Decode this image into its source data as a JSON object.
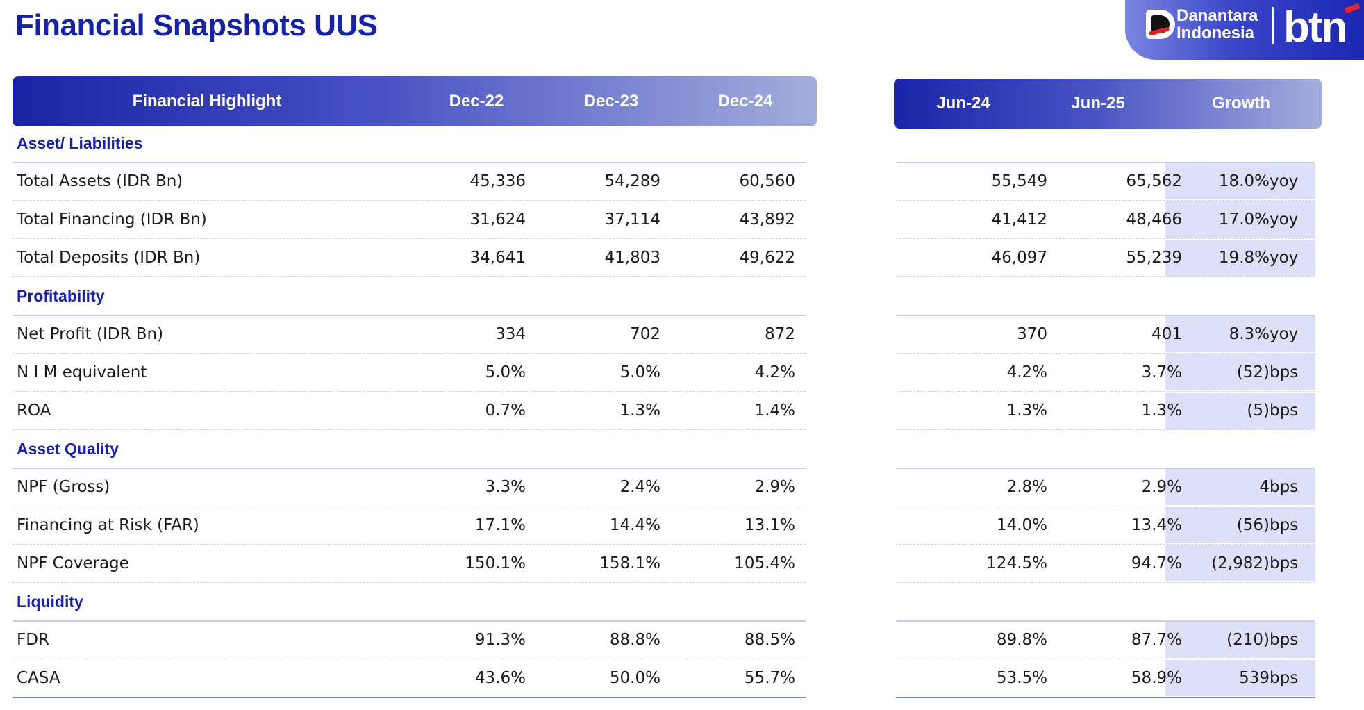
{
  "title": "Financial Snapshots UUS",
  "logo": {
    "line1": "Danantara",
    "line2": "Indonesia",
    "brand": "btn"
  },
  "left_header": {
    "label": "Financial Highlight",
    "cols": [
      "Dec-22",
      "Dec-23",
      "Dec-24"
    ]
  },
  "right_header": {
    "cols": [
      "Jun-24",
      "Jun-25",
      "Growth"
    ]
  },
  "rows": [
    {
      "type": "section",
      "label": "Asset/ Liabilities"
    },
    {
      "type": "data",
      "label": "Total Assets (IDR Bn)",
      "d22": "45,336",
      "d23": "54,289",
      "d24": "60,560",
      "j24": "55,549",
      "j25": "65,562",
      "growth": "18.0%",
      "unit": "yoy"
    },
    {
      "type": "data",
      "label": "Total Financing (IDR Bn)",
      "d22": "31,624",
      "d23": "37,114",
      "d24": "43,892",
      "j24": "41,412",
      "j25": "48,466",
      "growth": "17.0%",
      "unit": "yoy"
    },
    {
      "type": "data",
      "label": "Total Deposits (IDR Bn)",
      "d22": "34,641",
      "d23": "41,803",
      "d24": "49,622",
      "j24": "46,097",
      "j25": "55,239",
      "growth": "19.8%",
      "unit": "yoy"
    },
    {
      "type": "section",
      "label": "Profitability"
    },
    {
      "type": "data",
      "label": "Net Profit (IDR Bn)",
      "d22": "334",
      "d23": "702",
      "d24": "872",
      "j24": "370",
      "j25": "401",
      "growth": "8.3%",
      "unit": "yoy"
    },
    {
      "type": "data",
      "label": "N I M equivalent",
      "d22": "5.0%",
      "d23": "5.0%",
      "d24": "4.2%",
      "j24": "4.2%",
      "j25": "3.7%",
      "growth": "(52)",
      "unit": "bps"
    },
    {
      "type": "data",
      "label": "ROA",
      "d22": "0.7%",
      "d23": "1.3%",
      "d24": "1.4%",
      "j24": "1.3%",
      "j25": "1.3%",
      "growth": "(5)",
      "unit": "bps"
    },
    {
      "type": "section",
      "label": "Asset Quality"
    },
    {
      "type": "data",
      "label": "NPF (Gross)",
      "d22": "3.3%",
      "d23": "2.4%",
      "d24": "2.9%",
      "j24": "2.8%",
      "j25": "2.9%",
      "growth": "4",
      "unit": "bps"
    },
    {
      "type": "data",
      "label": "Financing at Risk (FAR)",
      "d22": "17.1%",
      "d23": "14.4%",
      "d24": "13.1%",
      "j24": "14.0%",
      "j25": "13.4%",
      "growth": "(56)",
      "unit": "bps"
    },
    {
      "type": "data",
      "label": "NPF Coverage",
      "d22": "150.1%",
      "d23": "158.1%",
      "d24": "105.4%",
      "j24": "124.5%",
      "j25": "94.7%",
      "growth": "(2,982)",
      "unit": "bps"
    },
    {
      "type": "section",
      "label": "Liquidity"
    },
    {
      "type": "data",
      "label": "FDR",
      "d22": "91.3%",
      "d23": "88.8%",
      "d24": "88.5%",
      "j24": "89.8%",
      "j25": "87.7%",
      "growth": "(210)",
      "unit": "bps"
    },
    {
      "type": "data",
      "label": "CASA",
      "d22": "43.6%",
      "d23": "50.0%",
      "d24": "55.7%",
      "j24": "53.5%",
      "j25": "58.9%",
      "growth": "539",
      "unit": "bps"
    }
  ]
}
